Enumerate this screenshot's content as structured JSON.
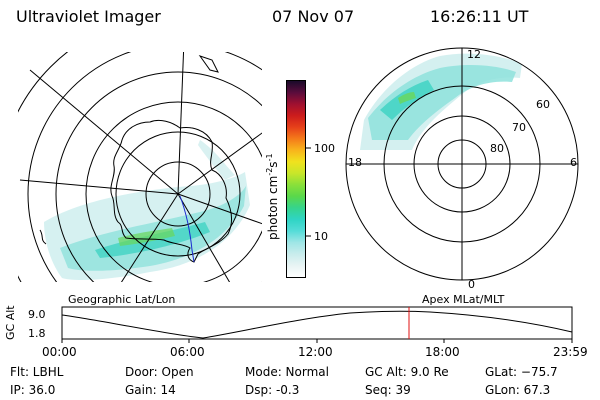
{
  "header": {
    "title": "Ultraviolet Imager",
    "date": "07 Nov 07",
    "time": "16:26:11 UT"
  },
  "colorbar": {
    "label": "photon cm",
    "label_exp1": "-2",
    "label_mid": "s",
    "label_exp2": "-1",
    "ticks": [
      "100",
      "10"
    ],
    "colors": [
      "#ffffff",
      "#e8f4f4",
      "#c8ecec",
      "#9fe6e6",
      "#55dcd8",
      "#2fd4c4",
      "#36d48c",
      "#5ad84a",
      "#8ae03a",
      "#c8e62a",
      "#f0e21e",
      "#f8b41c",
      "#f47a1a",
      "#e6401a",
      "#cc1c1c",
      "#a01030",
      "#5a0c3c",
      "#1a0a2a"
    ]
  },
  "left_map": {
    "label": "Geographic Lat/Lon"
  },
  "right_map": {
    "label": "Apex MLat/MLT",
    "mlt_labels": {
      "top": "12",
      "left": "18",
      "right": "6",
      "bottom": "0"
    },
    "lat_labels": [
      "60",
      "70",
      "80"
    ]
  },
  "timeline": {
    "axis_title": "GC Alt",
    "y_ticks": [
      "9.0",
      "1.8"
    ],
    "x_ticks": [
      "00:00",
      "06:00",
      "12:00",
      "18:00",
      "23:59"
    ],
    "marker_color": "#e01010"
  },
  "info": {
    "filter": "Flt: LBHL",
    "ip": "IP: 36.0",
    "door": "Door: Open",
    "gain": "Gain: 14",
    "mode": "Mode: Normal",
    "dsp": "Dsp:    -0.3",
    "gc_alt": "GC Alt: 9.0 Re",
    "seq": "Seq: 39",
    "glat": "GLat: −75.7",
    "glon": "GLon:  67.3"
  }
}
